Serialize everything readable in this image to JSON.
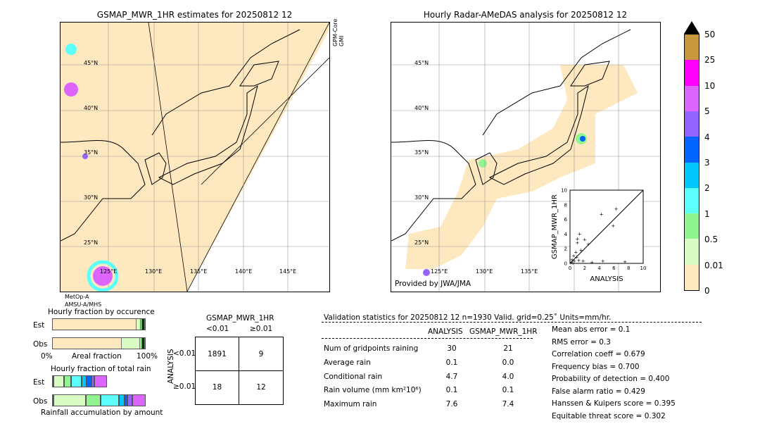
{
  "left_map": {
    "title": "GSMAP_MWR_1HR estimates for 20250812 12",
    "sensor_top": [
      "GPM-Core",
      "GMI"
    ],
    "sensor_bottom": [
      "MetOp-A",
      "AMSU-A/MHS"
    ],
    "lat_labels": [
      "45°N",
      "40°N",
      "35°N",
      "30°N",
      "25°N"
    ],
    "lon_labels": [
      "125°E",
      "130°E",
      "135°E",
      "140°E",
      "145°E"
    ]
  },
  "right_map": {
    "title": "Hourly Radar-AMeDAS analysis for 20250812 12",
    "credit": "Provided by JWA/JMA",
    "lat_labels": [
      "45°N",
      "40°N",
      "35°N",
      "30°N",
      "25°N"
    ],
    "lon_labels": [
      "125°E",
      "130°E",
      "135°E"
    ]
  },
  "scatter": {
    "xlabel": "ANALYSIS",
    "ylabel": "GSMAP_MWR_1HR",
    "xlim": [
      0,
      10
    ],
    "ylim": [
      0,
      10
    ],
    "ticks": [
      "0",
      "2",
      "4",
      "6",
      "8",
      "10"
    ],
    "points": [
      [
        0.2,
        0.1
      ],
      [
        0.3,
        0.5
      ],
      [
        0.5,
        1.0
      ],
      [
        0.6,
        0.3
      ],
      [
        0.8,
        1.5
      ],
      [
        1.0,
        2.8
      ],
      [
        1.0,
        3.3
      ],
      [
        1.2,
        0.4
      ],
      [
        1.3,
        4.0
      ],
      [
        1.5,
        1.8
      ],
      [
        2.0,
        3.2
      ],
      [
        2.5,
        2.6
      ],
      [
        4.3,
        6.7
      ],
      [
        5.9,
        5.1
      ],
      [
        6.3,
        7.4
      ],
      [
        7.5,
        0.2
      ],
      [
        0.4,
        0.0
      ],
      [
        1.8,
        0.3
      ],
      [
        3.0,
        0.1
      ],
      [
        4.5,
        0.3
      ],
      [
        0.9,
        0.8
      ]
    ]
  },
  "colorbar": {
    "labels": [
      "0",
      "0.01",
      "0.5",
      "1",
      "2",
      "3",
      "4",
      "5",
      "10",
      "25",
      "50"
    ],
    "colors": [
      "#fde8c0",
      "#d8fcc4",
      "#90f590",
      "#5cfffc",
      "#00c8ff",
      "#0064ff",
      "#9664ff",
      "#dc64ff",
      "#ff00ff",
      "#c8963c"
    ],
    "extend_color": "#000000"
  },
  "occurrence": {
    "title": "Hourly fraction by occurence",
    "rows": [
      "Est",
      "Obs"
    ],
    "xlabel": "Areal fraction",
    "x0": "0%",
    "x1": "100%",
    "est": [
      0.93,
      0.04,
      0.01,
      0.02
    ],
    "obs": [
      0.76,
      0.2,
      0.02,
      0.02
    ]
  },
  "total_rain": {
    "title": "Hourly fraction of total rain",
    "rows": [
      "Est",
      "Obs"
    ],
    "xlabel": "Rainfall accumulation by amount",
    "est": [
      0.01,
      0.11,
      0.08,
      0.11,
      0.05,
      0.06,
      0.03,
      0.13
    ],
    "obs": [
      0.01,
      0.35,
      0.16,
      0.19,
      0.06,
      0.03,
      0.06,
      0.14
    ]
  },
  "contingency": {
    "title": "GSMAP_MWR_1HR",
    "col_headers": [
      "<0.01",
      "≥0.01"
    ],
    "row_title": "ANALYSIS",
    "row_headers": [
      "<0.01",
      "≥0.01"
    ],
    "cells": [
      [
        "1891",
        "9"
      ],
      [
        "18",
        "12"
      ]
    ]
  },
  "stats": {
    "header": "Validation statistics for 20250812 12  n=1930 Valid. grid=0.25˚ Units=mm/hr.",
    "columns": [
      "ANALYSIS",
      "GSMAP_MWR_1HR"
    ],
    "rows": [
      {
        "label": "Num of gridpoints raining",
        "a": "30",
        "g": "21"
      },
      {
        "label": "Average rain",
        "a": "0.1",
        "g": "0.0"
      },
      {
        "label": "Conditional rain",
        "a": "4.7",
        "g": "4.0"
      },
      {
        "label": "Rain volume (mm km²10⁶)",
        "a": "0.1",
        "g": "0.1"
      },
      {
        "label": "Maximum rain",
        "a": "7.6",
        "g": "7.4"
      }
    ],
    "scores": [
      "Mean abs error =    0.1",
      "RMS error =    0.3",
      "Correlation coeff =  0.679",
      "Frequency bias =  0.700",
      "Probability of detection =  0.400",
      "False alarm ratio =  0.429",
      "Hanssen & Kuipers score =  0.395",
      "Equitable threat score =  0.302"
    ]
  }
}
